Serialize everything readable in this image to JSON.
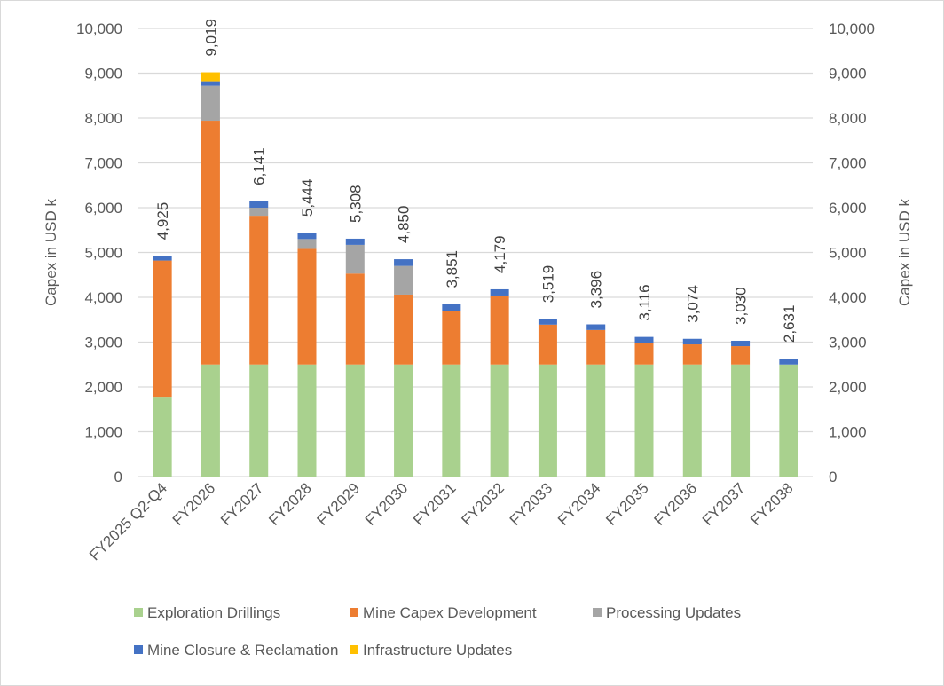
{
  "chart_data": {
    "type": "bar",
    "stacked": true,
    "title": "",
    "ylabel": "Capex in USD k",
    "y2label": "Capex in USD k",
    "ylim": [
      0,
      10000
    ],
    "ytick_step": 1000,
    "grid": true,
    "legend_position": "bottom",
    "categories": [
      "FY2025 Q2-Q4",
      "FY2026",
      "FY2027",
      "FY2028",
      "FY2029",
      "FY2030",
      "FY2031",
      "FY2032",
      "FY2033",
      "FY2034",
      "FY2035",
      "FY2036",
      "FY2037",
      "FY2038"
    ],
    "totals": [
      4925,
      9019,
      6141,
      5444,
      5308,
      4850,
      3851,
      4179,
      3519,
      3396,
      3116,
      3074,
      3030,
      2631
    ],
    "total_labels": [
      "4,925",
      "9,019",
      "6,141",
      "5,444",
      "5,308",
      "4,850",
      "3,851",
      "4,179",
      "3,519",
      "3,396",
      "3,116",
      "3,074",
      "3,030",
      "2,631"
    ],
    "series": [
      {
        "name": "Exploration Drillings",
        "color": "#a9d18e",
        "values": [
          1780,
          2500,
          2500,
          2500,
          2500,
          2500,
          2500,
          2500,
          2500,
          2500,
          2500,
          2500,
          2500,
          2500
        ]
      },
      {
        "name": "Mine Capex Development",
        "color": "#ed7d31",
        "values": [
          3040,
          5440,
          3320,
          2580,
          2030,
          1560,
          1200,
          1540,
          890,
          770,
          490,
          450,
          410,
          0
        ]
      },
      {
        "name": "Processing Updates",
        "color": "#a5a5a5",
        "values": [
          0,
          780,
          180,
          220,
          640,
          640,
          0,
          0,
          0,
          0,
          0,
          0,
          0,
          0
        ]
      },
      {
        "name": "Mine Closure & Reclamation",
        "color": "#4472c4",
        "values": [
          105,
          100,
          141,
          144,
          138,
          150,
          151,
          139,
          129,
          126,
          126,
          124,
          120,
          131
        ]
      },
      {
        "name": "Infrastructure Updates",
        "color": "#ffc000",
        "values": [
          0,
          199,
          0,
          0,
          0,
          0,
          0,
          0,
          0,
          0,
          0,
          0,
          0,
          0
        ]
      }
    ],
    "ytick_labels": [
      "0",
      "1,000",
      "2,000",
      "3,000",
      "4,000",
      "5,000",
      "6,000",
      "7,000",
      "8,000",
      "9,000",
      "10,000"
    ]
  }
}
